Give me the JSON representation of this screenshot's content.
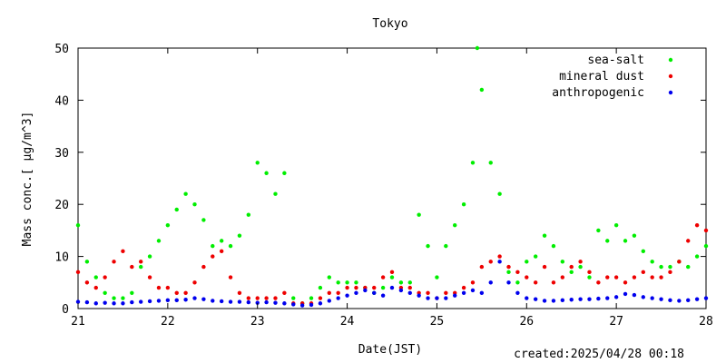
{
  "chart_data": {
    "type": "scatter",
    "title": "Tokyo",
    "xlabel": "Date(JST)",
    "ylabel": "Mass conc.[ μg/m^3]",
    "xlim": [
      21,
      28
    ],
    "ylim": [
      0,
      50
    ],
    "xticks": [
      "21",
      "22",
      "23",
      "24",
      "25",
      "26",
      "27",
      "28"
    ],
    "yticks": [
      "0",
      "10",
      "20",
      "30",
      "40",
      "50"
    ],
    "legend_position": "top-right",
    "grid": false,
    "series": [
      {
        "name": "sea-salt",
        "color": "#00ee00",
        "x": [
          21.0,
          21.1,
          21.2,
          21.3,
          21.4,
          21.5,
          21.6,
          21.7,
          21.8,
          21.9,
          22.0,
          22.1,
          22.2,
          22.3,
          22.4,
          22.5,
          22.6,
          22.7,
          22.8,
          22.9,
          23.0,
          23.1,
          23.2,
          23.3,
          23.4,
          23.5,
          23.6,
          23.7,
          23.8,
          23.9,
          24.0,
          24.1,
          24.2,
          24.3,
          24.4,
          24.5,
          24.6,
          24.7,
          24.8,
          24.9,
          25.0,
          25.1,
          25.2,
          25.3,
          25.4,
          25.45,
          25.5,
          25.6,
          25.7,
          25.8,
          25.9,
          26.0,
          26.1,
          26.2,
          26.3,
          26.4,
          26.5,
          26.6,
          26.7,
          26.8,
          26.9,
          27.0,
          27.1,
          27.2,
          27.3,
          27.4,
          27.5,
          27.6,
          27.7,
          27.8,
          27.9,
          28.0
        ],
        "values": [
          16,
          9,
          6,
          3,
          2,
          2,
          3,
          8,
          10,
          13,
          16,
          19,
          22,
          20,
          17,
          12,
          13,
          12,
          14,
          18,
          28,
          26,
          22,
          26,
          2,
          1,
          2,
          4,
          6,
          5,
          5,
          5,
          4,
          3,
          4,
          6,
          5,
          5,
          18,
          12,
          6,
          12,
          16,
          20,
          28,
          50,
          42,
          28,
          22,
          7,
          5,
          9,
          10,
          14,
          12,
          9,
          7,
          8,
          6,
          15,
          13,
          16,
          13,
          14,
          11,
          9,
          8,
          8,
          9,
          8,
          10,
          12
        ]
      },
      {
        "name": "mineral dust",
        "color": "#ee0000",
        "x": [
          21.0,
          21.1,
          21.2,
          21.3,
          21.4,
          21.5,
          21.6,
          21.7,
          21.8,
          21.9,
          22.0,
          22.1,
          22.2,
          22.3,
          22.4,
          22.5,
          22.6,
          22.7,
          22.8,
          22.9,
          23.0,
          23.1,
          23.2,
          23.3,
          23.4,
          23.5,
          23.6,
          23.7,
          23.8,
          23.9,
          24.0,
          24.1,
          24.2,
          24.3,
          24.4,
          24.5,
          24.6,
          24.7,
          24.8,
          24.9,
          25.0,
          25.1,
          25.2,
          25.3,
          25.4,
          25.5,
          25.6,
          25.7,
          25.8,
          25.9,
          26.0,
          26.1,
          26.2,
          26.3,
          26.4,
          26.5,
          26.6,
          26.7,
          26.8,
          26.9,
          27.0,
          27.1,
          27.2,
          27.3,
          27.4,
          27.5,
          27.6,
          27.7,
          27.8,
          27.9,
          28.0
        ],
        "values": [
          7,
          5,
          4,
          6,
          9,
          11,
          8,
          9,
          6,
          4,
          4,
          3,
          3,
          5,
          8,
          10,
          11,
          6,
          3,
          2,
          2,
          2,
          2,
          3,
          1,
          1,
          1,
          2,
          3,
          3,
          4,
          4,
          4,
          4,
          6,
          7,
          4,
          4,
          3,
          3,
          2,
          3,
          3,
          4,
          5,
          8,
          9,
          10,
          8,
          7,
          6,
          5,
          8,
          5,
          6,
          8,
          9,
          7,
          5,
          6,
          6,
          5,
          6,
          7,
          6,
          6,
          7,
          9,
          13,
          16,
          15
        ]
      },
      {
        "name": "anthropogenic",
        "color": "#0000ee",
        "x": [
          21.0,
          21.1,
          21.2,
          21.3,
          21.4,
          21.5,
          21.6,
          21.7,
          21.8,
          21.9,
          22.0,
          22.1,
          22.2,
          22.3,
          22.4,
          22.5,
          22.6,
          22.7,
          22.8,
          22.9,
          23.0,
          23.1,
          23.2,
          23.3,
          23.4,
          23.5,
          23.6,
          23.7,
          23.8,
          23.9,
          24.0,
          24.1,
          24.2,
          24.3,
          24.4,
          24.5,
          24.6,
          24.7,
          24.8,
          24.9,
          25.0,
          25.1,
          25.2,
          25.3,
          25.4,
          25.5,
          25.6,
          25.7,
          25.8,
          25.9,
          26.0,
          26.1,
          26.2,
          26.3,
          26.4,
          26.5,
          26.6,
          26.7,
          26.8,
          26.9,
          27.0,
          27.1,
          27.2,
          27.3,
          27.4,
          27.5,
          27.6,
          27.7,
          27.8,
          27.9,
          28.0
        ],
        "values": [
          1.3,
          1.2,
          1.0,
          1.1,
          1.0,
          1.0,
          1.2,
          1.3,
          1.4,
          1.5,
          1.6,
          1.6,
          1.7,
          2.0,
          1.8,
          1.5,
          1.4,
          1.3,
          1.3,
          1.2,
          1.1,
          1.2,
          1.1,
          1.0,
          0.8,
          0.6,
          0.7,
          1.0,
          1.5,
          2.0,
          2.5,
          3.0,
          3.5,
          3.0,
          2.5,
          4.0,
          3.5,
          3.0,
          2.5,
          2.0,
          2.0,
          2.0,
          2.5,
          3.0,
          3.5,
          3.0,
          5.0,
          9.0,
          5.0,
          3.0,
          2.0,
          1.8,
          1.5,
          1.5,
          1.6,
          1.7,
          1.8,
          1.8,
          1.9,
          2.0,
          2.2,
          2.8,
          2.6,
          2.2,
          2.0,
          1.8,
          1.6,
          1.5,
          1.6,
          1.8,
          2.0
        ]
      }
    ]
  },
  "footer": {
    "created": "created:2025/04/28 00:18"
  }
}
